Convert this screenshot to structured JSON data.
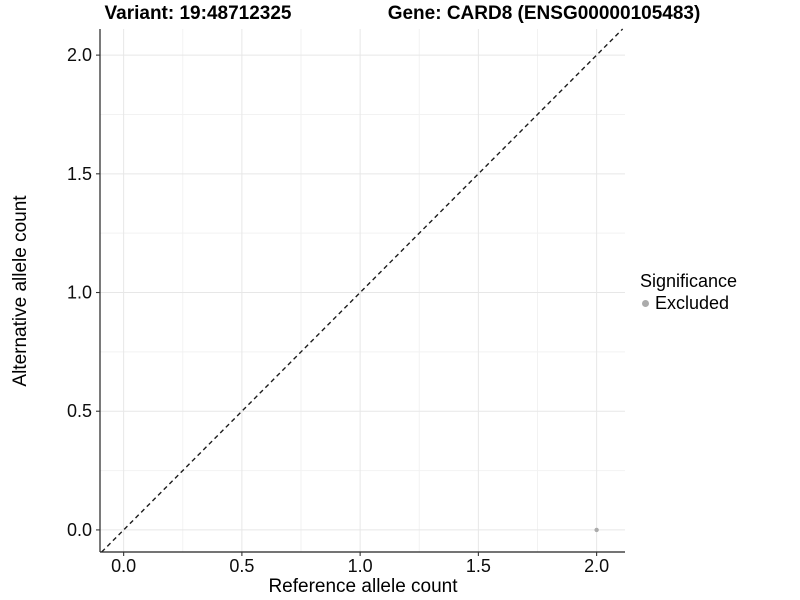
{
  "header": {
    "variant_title": "Variant: 19:48712325",
    "gene_title": "Gene: CARD8 (ENSG00000105483)"
  },
  "legend": {
    "title": "Significance",
    "items": [
      {
        "label": "Excluded",
        "color": "#ababab"
      }
    ]
  },
  "chart_data": {
    "type": "scatter",
    "title": "Variant: 19:48712325 — Gene: CARD8 (ENSG00000105483)",
    "xlabel": "Reference allele count",
    "ylabel": "Alternative allele count",
    "xticks": [
      0.0,
      0.5,
      1.0,
      1.5,
      2.0
    ],
    "yticks": [
      0.0,
      0.5,
      1.0,
      1.5,
      2.0
    ],
    "xlim": [
      -0.1,
      2.12
    ],
    "ylim": [
      -0.093,
      2.11
    ],
    "tick_decimals": 1,
    "grid": "major+minor",
    "legend_position": "right",
    "reference_line": {
      "type": "identity y=x",
      "style": "dashed",
      "color": "#1c1c1c"
    },
    "series": [
      {
        "name": "Excluded",
        "color": "#ababab",
        "points": [
          {
            "x": 2.0,
            "y": 0.0
          }
        ]
      }
    ],
    "colors": {
      "grid_major": "#e7e7e7",
      "grid_minor": "#f2f2f2",
      "axis_line": "#222222",
      "tick_mark": "#333333"
    }
  }
}
